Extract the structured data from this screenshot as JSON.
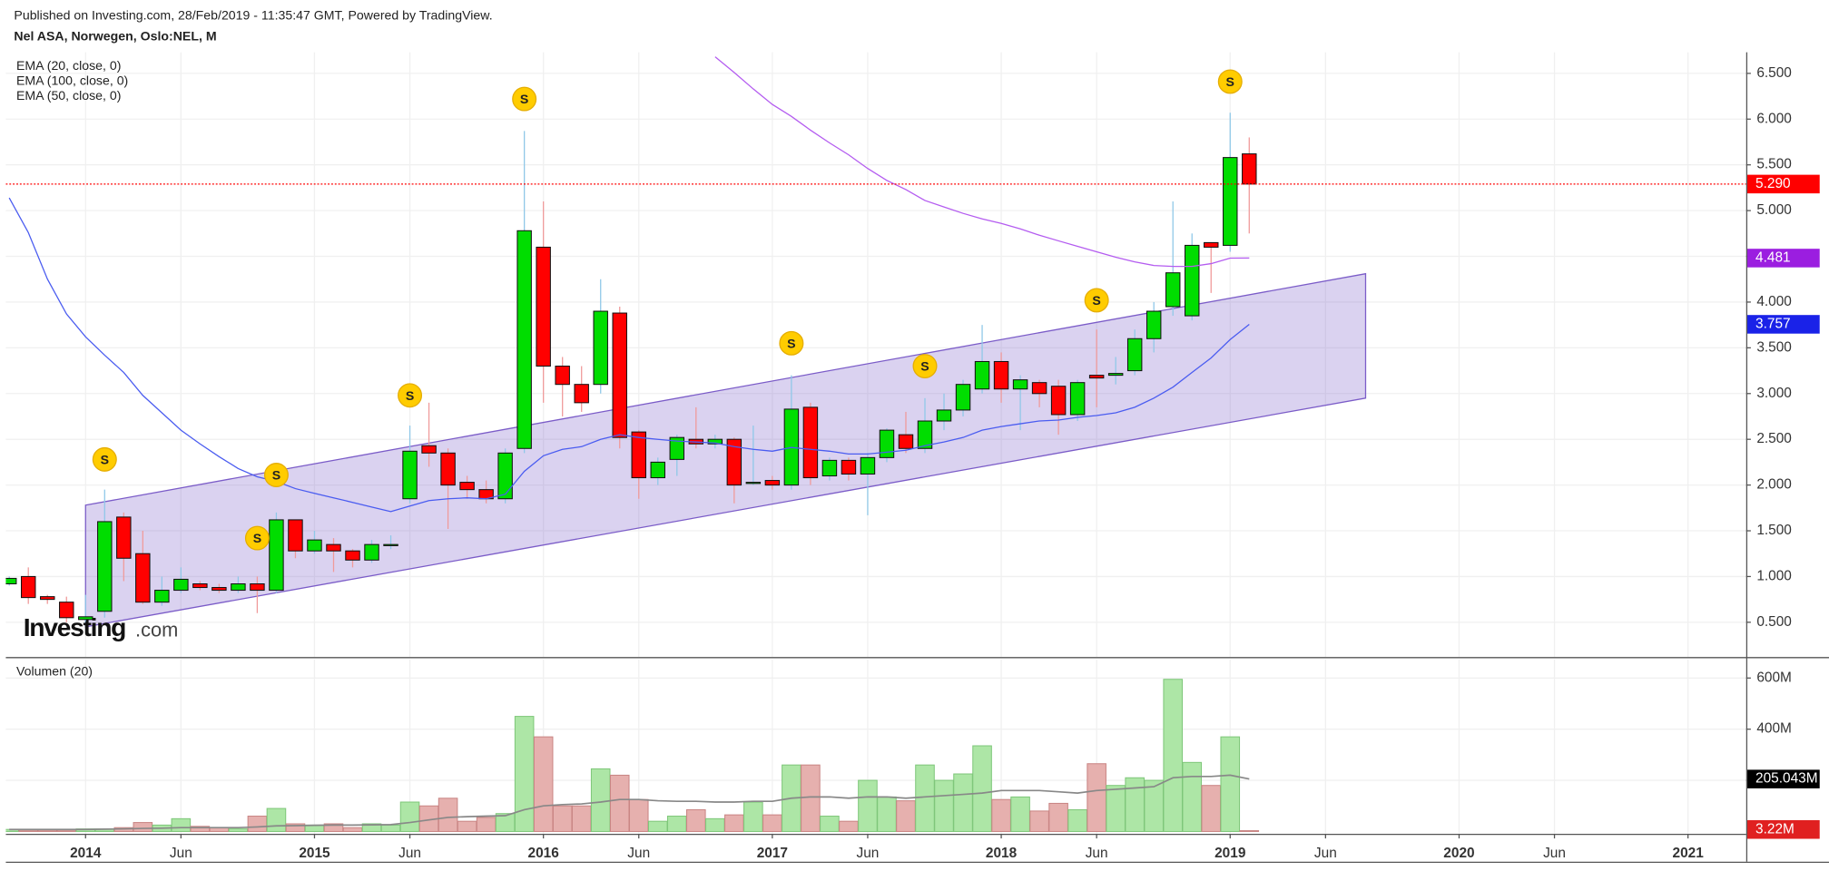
{
  "header": {
    "published": "Published on Investing.com, 28/Feb/2019 - 11:35:47 GMT, Powered by TradingView.",
    "symbol": "Nel ASA, Norwegen, Oslo:NEL, M"
  },
  "watermark": {
    "brand": "Investing",
    "suffix": ".com"
  },
  "chart_data": {
    "type": "candlestick",
    "legend": [
      "EMA (20, close, 0)",
      "EMA (100, close, 0)",
      "EMA (50, close, 0)"
    ],
    "xlim": [
      -0.18,
      91.05
    ],
    "xticks": [
      {
        "value": 4,
        "label": "2014"
      },
      {
        "value": 9,
        "label": "Jun"
      },
      {
        "value": 16,
        "label": "2015"
      },
      {
        "value": 21,
        "label": "Jun"
      },
      {
        "value": 28,
        "label": "2016"
      },
      {
        "value": 33,
        "label": "Jun"
      },
      {
        "value": 40,
        "label": "2017"
      },
      {
        "value": 45,
        "label": "Jun"
      },
      {
        "value": 52,
        "label": "2018"
      },
      {
        "value": 57,
        "label": "Jun"
      },
      {
        "value": 64,
        "label": "2019"
      },
      {
        "value": 69,
        "label": "Jun"
      },
      {
        "value": 76,
        "label": "2020"
      },
      {
        "value": 81,
        "label": "Jun"
      },
      {
        "value": 88,
        "label": "2021"
      }
    ],
    "ylim": [
      0.12,
      6.73
    ],
    "yticks": [
      {
        "value": 0.5,
        "label": "0.500"
      },
      {
        "value": 1,
        "label": "1.000"
      },
      {
        "value": 1.5,
        "label": "1.500"
      },
      {
        "value": 2,
        "label": "2.000"
      },
      {
        "value": 2.5,
        "label": "2.500"
      },
      {
        "value": 3,
        "label": "3.000"
      },
      {
        "value": 3.5,
        "label": "3.500"
      },
      {
        "value": 4,
        "label": "4.000"
      },
      {
        "value": 4.5,
        "label": "4.500"
      },
      {
        "value": 5,
        "label": "5.000"
      },
      {
        "value": 5.5,
        "label": "5.500"
      },
      {
        "value": 6,
        "label": "6.000"
      },
      {
        "value": 6.5,
        "label": "6.500"
      }
    ],
    "grid": true,
    "up_color": "#00dd00",
    "down_color": "#ff0000",
    "ohlc": {
      "open": [
        0.92,
        1.0,
        0.78,
        0.72,
        0.53,
        0.62,
        1.65,
        1.25,
        0.72,
        0.85,
        0.92,
        0.88,
        0.85,
        0.92,
        0.85,
        1.62,
        1.28,
        1.35,
        1.28,
        1.18,
        1.34,
        1.85,
        2.43,
        2.35,
        2.03,
        1.95,
        1.85,
        2.4,
        4.6,
        3.3,
        3.1,
        3.1,
        3.88,
        2.58,
        2.08,
        2.28,
        2.5,
        2.45,
        2.5,
        2.02,
        2.05,
        2.0,
        2.85,
        2.1,
        2.27,
        2.12,
        2.3,
        2.55,
        2.4,
        2.7,
        2.82,
        3.05,
        3.35,
        3.05,
        3.12,
        3.08,
        2.77,
        3.2,
        3.2,
        3.25,
        3.6,
        3.95,
        3.85,
        4.65,
        4.62,
        5.62
      ],
      "high": [
        1.0,
        1.1,
        0.8,
        0.78,
        0.8,
        1.95,
        1.7,
        1.5,
        1.0,
        1.1,
        0.95,
        0.92,
        1.0,
        1.0,
        1.7,
        1.62,
        1.5,
        1.42,
        1.3,
        1.4,
        1.45,
        2.65,
        2.9,
        2.4,
        2.1,
        2.05,
        2.4,
        5.87,
        5.1,
        3.4,
        3.3,
        4.25,
        3.95,
        2.6,
        2.3,
        2.55,
        2.85,
        2.55,
        2.52,
        2.65,
        2.1,
        3.2,
        2.9,
        2.3,
        2.3,
        2.35,
        2.62,
        2.8,
        2.95,
        3.0,
        3.15,
        3.75,
        3.45,
        3.2,
        3.15,
        3.15,
        3.15,
        3.7,
        3.4,
        3.7,
        4.0,
        5.1,
        4.75,
        4.65,
        6.07,
        5.8
      ],
      "low": [
        0.9,
        0.7,
        0.7,
        0.5,
        0.45,
        0.55,
        0.95,
        0.7,
        0.68,
        0.82,
        0.85,
        0.82,
        0.82,
        0.6,
        0.82,
        1.2,
        1.25,
        1.05,
        1.1,
        1.15,
        1.3,
        1.8,
        2.2,
        1.52,
        1.85,
        1.8,
        1.8,
        2.35,
        2.9,
        2.75,
        2.8,
        3.0,
        2.4,
        1.85,
        2.0,
        2.1,
        2.4,
        2.4,
        1.8,
        2.0,
        1.95,
        1.95,
        2.0,
        2.05,
        2.05,
        1.67,
        2.25,
        2.35,
        2.35,
        2.6,
        2.75,
        3.0,
        2.9,
        2.6,
        2.85,
        2.55,
        2.7,
        2.85,
        3.1,
        3.2,
        3.45,
        3.85,
        3.8,
        4.1,
        4.55,
        4.75
      ],
      "close": [
        0.98,
        0.77,
        0.75,
        0.55,
        0.56,
        1.6,
        1.2,
        0.72,
        0.85,
        0.97,
        0.88,
        0.85,
        0.92,
        0.85,
        1.62,
        1.28,
        1.4,
        1.28,
        1.18,
        1.35,
        1.35,
        2.37,
        2.35,
        2.0,
        1.95,
        1.85,
        2.35,
        4.78,
        3.3,
        3.1,
        2.9,
        3.9,
        2.52,
        2.08,
        2.25,
        2.52,
        2.45,
        2.5,
        2.0,
        2.03,
        2.0,
        2.83,
        2.08,
        2.27,
        2.12,
        2.3,
        2.6,
        2.4,
        2.7,
        2.82,
        3.1,
        3.35,
        3.05,
        3.15,
        3.0,
        2.77,
        3.12,
        3.17,
        3.22,
        3.6,
        3.9,
        4.32,
        4.62,
        4.6,
        5.58,
        5.29
      ],
      "last_label": "5.290"
    },
    "series": [
      {
        "color": "#4a5cf0",
        "label_color": "#1a22e8",
        "last_label": "3.757",
        "values": [
          5.14,
          4.76,
          4.25,
          3.87,
          3.62,
          3.42,
          3.23,
          2.98,
          2.79,
          2.6,
          2.45,
          2.31,
          2.18,
          2.09,
          2.04,
          1.96,
          1.91,
          1.86,
          1.81,
          1.76,
          1.71,
          1.77,
          1.83,
          1.85,
          1.86,
          1.85,
          1.9,
          2.15,
          2.32,
          2.39,
          2.42,
          2.5,
          2.55,
          2.52,
          2.5,
          2.48,
          2.47,
          2.46,
          2.42,
          2.39,
          2.37,
          2.41,
          2.39,
          2.37,
          2.34,
          2.34,
          2.36,
          2.38,
          2.43,
          2.47,
          2.52,
          2.6,
          2.64,
          2.67,
          2.7,
          2.71,
          2.74,
          2.76,
          2.79,
          2.85,
          2.95,
          3.07,
          3.23,
          3.39,
          3.59,
          3.757
        ]
      },
      {
        "color": "#b45cf0",
        "label_color": "#9b1ee0",
        "last_label": "4.481",
        "values": [
          null,
          null,
          null,
          null,
          null,
          null,
          null,
          null,
          null,
          null,
          null,
          null,
          null,
          null,
          null,
          null,
          null,
          null,
          null,
          null,
          null,
          null,
          null,
          null,
          null,
          null,
          null,
          null,
          null,
          null,
          null,
          null,
          null,
          null,
          null,
          null,
          null,
          6.68,
          6.51,
          6.33,
          6.16,
          6.03,
          5.88,
          5.74,
          5.61,
          5.46,
          5.33,
          5.23,
          5.11,
          5.04,
          4.97,
          4.91,
          4.86,
          4.8,
          4.73,
          4.67,
          4.61,
          4.55,
          4.49,
          4.44,
          4.4,
          4.39,
          4.39,
          4.42,
          4.48,
          4.481
        ]
      }
    ],
    "channel": {
      "x": [
        4,
        71.1
      ],
      "upper": [
        1.78,
        4.31
      ],
      "lower": [
        0.45,
        2.95
      ],
      "color": "#7b5cc8"
    },
    "events": [
      {
        "label": "S",
        "index": 5,
        "value": 2.28
      },
      {
        "label": "S",
        "index": 13,
        "value": 1.42
      },
      {
        "label": "S",
        "index": 14,
        "value": 2.11
      },
      {
        "label": "S",
        "index": 21,
        "value": 2.98
      },
      {
        "label": "S",
        "index": 27,
        "value": 6.22
      },
      {
        "label": "S",
        "index": 41,
        "value": 3.55
      },
      {
        "label": "S",
        "index": 48,
        "value": 3.3
      },
      {
        "label": "S",
        "index": 57,
        "value": 4.02
      },
      {
        "label": "S",
        "index": 64,
        "value": 6.41
      }
    ],
    "volume": {
      "title": "Volumen (20)",
      "ylim": [
        -9,
        673
      ],
      "yticks": [
        {
          "value": 200,
          "label": "200M"
        },
        {
          "value": 400,
          "label": "400M"
        },
        {
          "value": 600,
          "label": "600M"
        }
      ],
      "values": [
        8,
        5,
        5,
        5,
        10,
        10,
        15,
        35,
        25,
        50,
        20,
        15,
        10,
        60,
        90,
        30,
        25,
        30,
        15,
        30,
        25,
        115,
        100,
        130,
        40,
        55,
        70,
        450,
        370,
        100,
        100,
        245,
        220,
        125,
        40,
        60,
        85,
        50,
        65,
        115,
        65,
        260,
        260,
        60,
        40,
        200,
        135,
        120,
        260,
        200,
        225,
        335,
        125,
        135,
        80,
        110,
        85,
        265,
        180,
        210,
        200,
        595,
        270,
        180,
        370,
        3.22
      ],
      "last_label": "3.22M",
      "ma": {
        "color": "#888888",
        "last_label": "205.043M",
        "values": [
          8,
          8,
          8,
          8,
          8,
          9,
          10,
          12,
          13,
          15,
          15,
          15,
          15,
          18,
          22,
          23,
          24,
          25,
          25,
          26,
          27,
          35,
          45,
          55,
          58,
          60,
          62,
          85,
          100,
          105,
          108,
          115,
          125,
          125,
          120,
          118,
          118,
          115,
          115,
          118,
          118,
          130,
          135,
          135,
          130,
          135,
          135,
          130,
          135,
          140,
          145,
          150,
          160,
          160,
          160,
          155,
          150,
          160,
          165,
          170,
          175,
          210,
          215,
          215,
          220,
          205.043
        ]
      }
    }
  }
}
